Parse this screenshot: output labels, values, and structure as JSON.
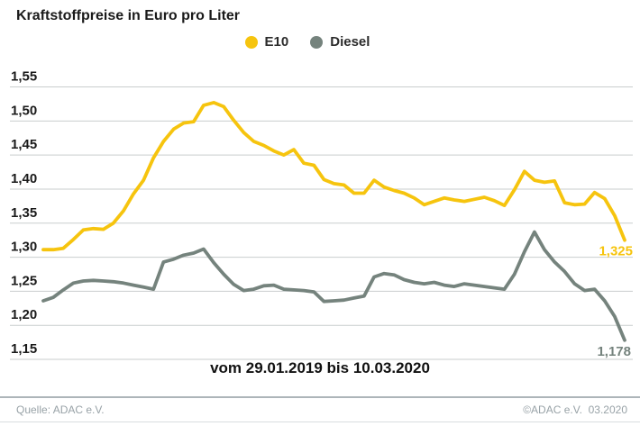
{
  "title": "Kraftstoffpreise in Euro pro Liter",
  "legend": {
    "e10": {
      "label": "E10",
      "color": "#f6c40e"
    },
    "diesel": {
      "label": "Diesel",
      "color": "#75837d"
    }
  },
  "chart_data": {
    "type": "line",
    "title": "Kraftstoffpreise in Euro pro Liter",
    "x_caption": "vom 29.01.2019 bis 10.03.2020",
    "x_start": "29.01.2019",
    "x_end": "10.03.2020",
    "y_ticks": [
      "1,55",
      "1,50",
      "1,45",
      "1,40",
      "1,35",
      "1,30",
      "1,25",
      "1,20",
      "1,15"
    ],
    "ylim": [
      1.15,
      1.55
    ],
    "grid": true,
    "legend_position": "top",
    "series": [
      {
        "name": "E10",
        "color": "#f6c40e",
        "end_label": "1,325",
        "values": [
          1.311,
          1.311,
          1.313,
          1.326,
          1.34,
          1.342,
          1.341,
          1.35,
          1.368,
          1.393,
          1.413,
          1.446,
          1.47,
          1.488,
          1.497,
          1.499,
          1.523,
          1.527,
          1.521,
          1.501,
          1.483,
          1.47,
          1.464,
          1.456,
          1.45,
          1.458,
          1.438,
          1.435,
          1.414,
          1.408,
          1.406,
          1.394,
          1.394,
          1.413,
          1.403,
          1.398,
          1.394,
          1.387,
          1.377,
          1.382,
          1.387,
          1.384,
          1.382,
          1.385,
          1.388,
          1.383,
          1.376,
          1.399,
          1.426,
          1.413,
          1.41,
          1.412,
          1.38,
          1.377,
          1.378,
          1.395,
          1.386,
          1.361,
          1.325
        ]
      },
      {
        "name": "Diesel",
        "color": "#75837d",
        "end_label": "1,178",
        "values": [
          1.236,
          1.241,
          1.252,
          1.262,
          1.265,
          1.266,
          1.265,
          1.264,
          1.262,
          1.259,
          1.256,
          1.253,
          1.293,
          1.297,
          1.303,
          1.306,
          1.312,
          1.292,
          1.275,
          1.26,
          1.251,
          1.253,
          1.258,
          1.259,
          1.253,
          1.252,
          1.251,
          1.249,
          1.235,
          1.236,
          1.237,
          1.24,
          1.243,
          1.271,
          1.276,
          1.274,
          1.267,
          1.263,
          1.261,
          1.263,
          1.259,
          1.257,
          1.261,
          1.259,
          1.257,
          1.255,
          1.253,
          1.275,
          1.308,
          1.337,
          1.311,
          1.293,
          1.279,
          1.261,
          1.251,
          1.253,
          1.236,
          1.213,
          1.178
        ]
      }
    ]
  },
  "footer": {
    "source": "Quelle: ADAC e.V.",
    "copyright": "©ADAC e.V.  03.2020"
  }
}
